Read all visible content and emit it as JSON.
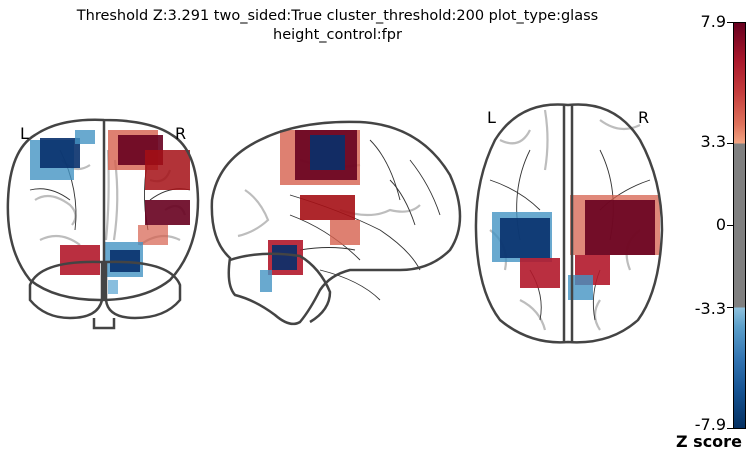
{
  "title": {
    "line1": "Threshold Z:3.291  two_sided:True  cluster_threshold:200  plot_type:glass",
    "line2": "height_control:fpr"
  },
  "views": {
    "coronal": {
      "left_label": "L",
      "right_label": "R"
    },
    "axial": {
      "left_label": "L",
      "right_label": "R"
    }
  },
  "colorbar": {
    "label": "Z score",
    "ticks": [
      "7.9",
      "3.3",
      "0",
      "-3.3",
      "-7.9"
    ],
    "colors": {
      "max": "#67001f",
      "pos": "#b2182b",
      "mid": "#808080",
      "neg": "#2166ac",
      "min": "#053061"
    }
  }
}
